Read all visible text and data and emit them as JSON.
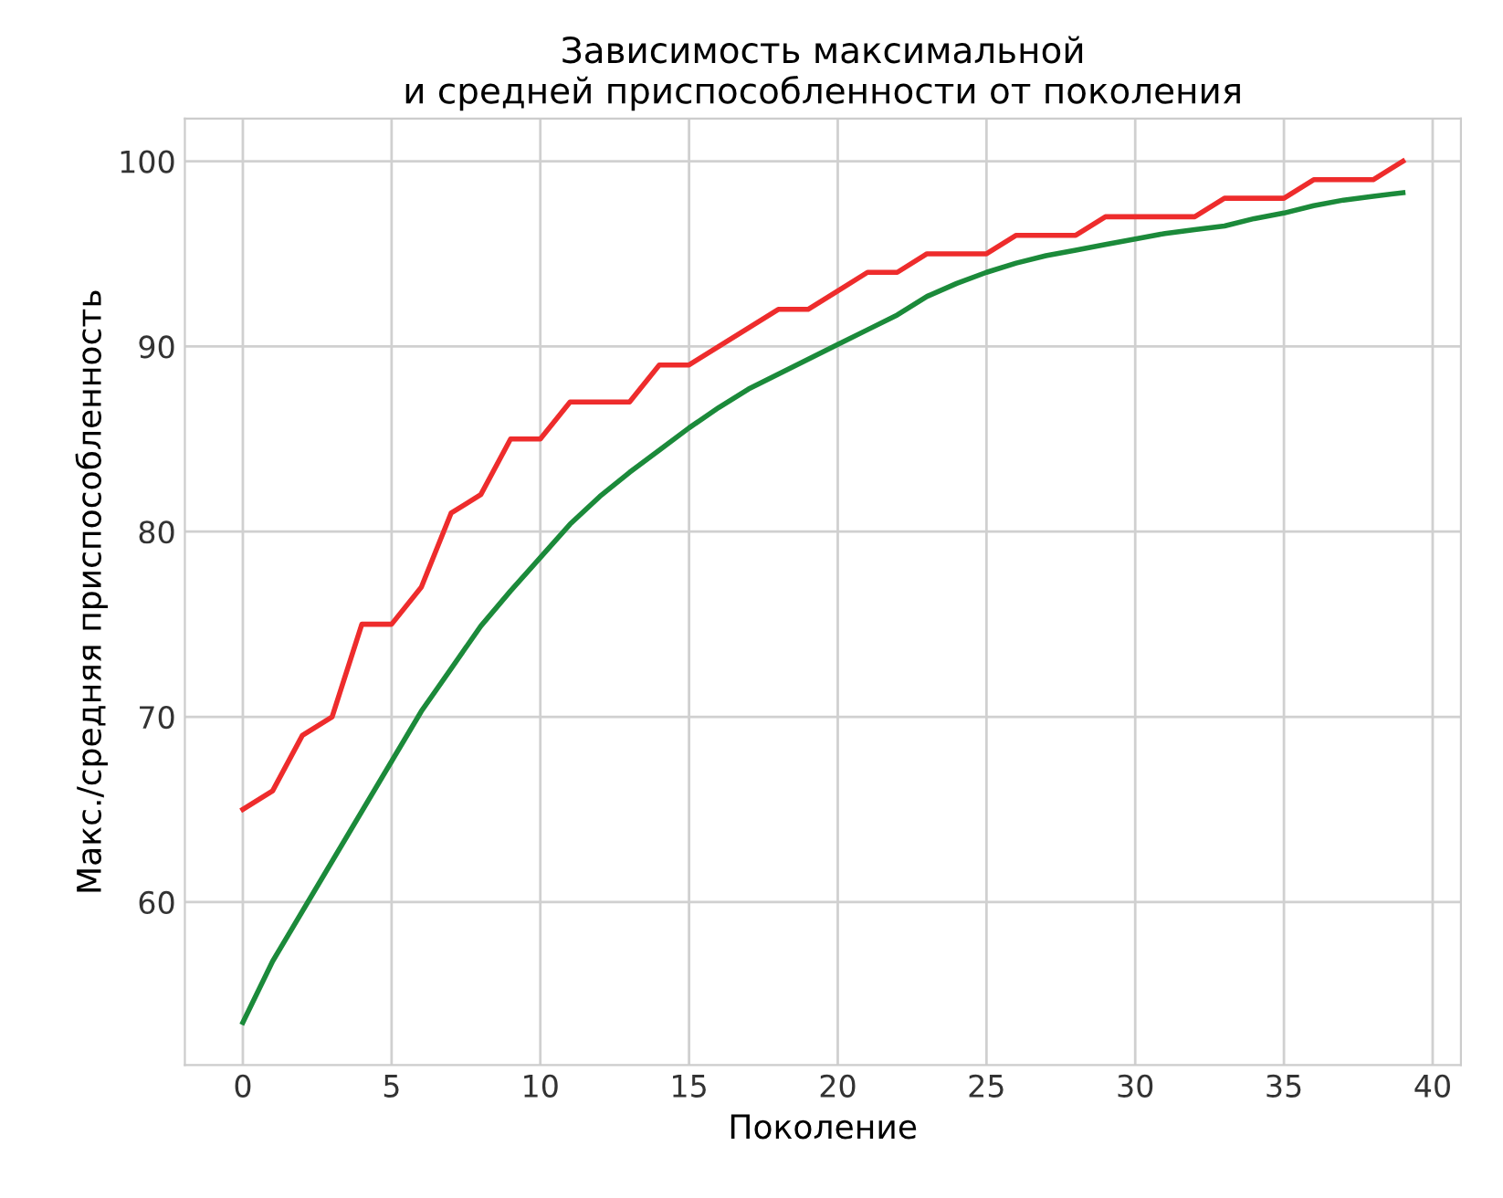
{
  "chart_data": {
    "type": "line",
    "title": "Зависимость максимальной\nи средней приспособленности от поколения",
    "xlabel": "Поколение",
    "ylabel": "Макс./средняя приспособленность",
    "x": [
      0,
      1,
      2,
      3,
      4,
      5,
      6,
      7,
      8,
      9,
      10,
      11,
      12,
      13,
      14,
      15,
      16,
      17,
      18,
      19,
      20,
      21,
      22,
      23,
      24,
      25,
      26,
      27,
      28,
      29,
      30,
      31,
      32,
      33,
      34,
      35,
      36,
      37,
      38,
      39
    ],
    "series": [
      {
        "color": "#ee2c2c",
        "values": [
          65,
          66,
          69,
          70,
          75,
          75,
          77,
          81,
          82,
          85,
          85,
          87,
          87,
          87,
          89,
          89,
          90,
          91,
          92,
          92,
          93,
          94,
          94,
          95,
          95,
          95,
          96,
          96,
          96,
          97,
          97,
          97,
          97,
          98,
          98,
          98,
          99,
          99,
          99,
          100
        ]
      },
      {
        "color": "#1b8a3a",
        "values": [
          53.5,
          56.8,
          59.5,
          62.2,
          64.9,
          67.6,
          70.3,
          72.6,
          74.9,
          76.8,
          78.6,
          80.4,
          81.9,
          83.2,
          84.4,
          85.6,
          86.7,
          87.7,
          88.5,
          89.3,
          90.1,
          90.9,
          91.7,
          92.7,
          93.4,
          94.0,
          94.5,
          94.9,
          95.2,
          95.5,
          95.8,
          96.1,
          96.3,
          96.5,
          96.9,
          97.2,
          97.6,
          97.9,
          98.1,
          98.3
        ]
      }
    ],
    "xlim": [
      -1.95,
      40.95
    ],
    "ylim": [
      51.2,
      102.3
    ],
    "xticks": [
      0,
      5,
      10,
      15,
      20,
      25,
      30,
      35,
      40
    ],
    "yticks": [
      60,
      70,
      80,
      90,
      100
    ],
    "grid": true,
    "marker": "none",
    "line_style": "solid"
  }
}
